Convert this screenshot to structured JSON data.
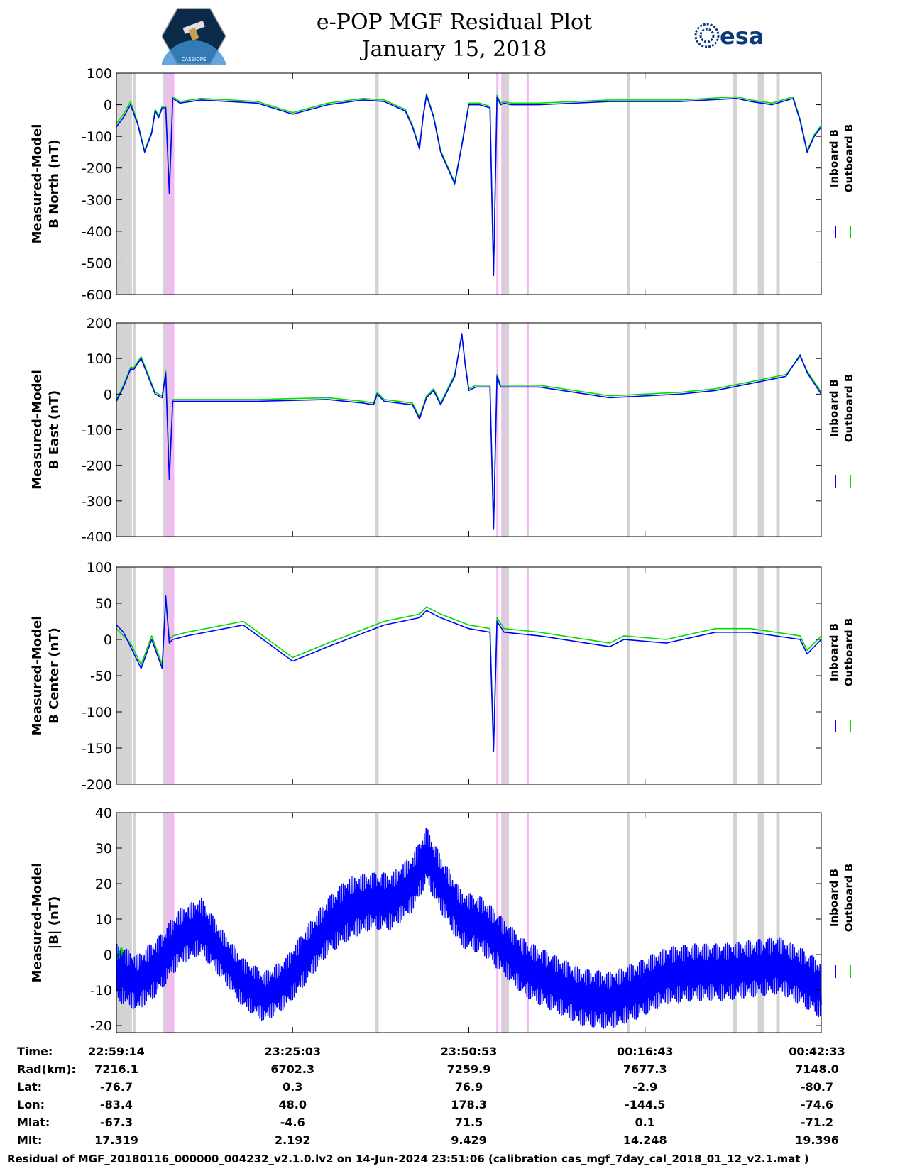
{
  "header": {
    "title_line1": "e-POP MGF Residual Plot",
    "title_line2": "January 15, 2018",
    "logo_left_text": "CASSIOPE",
    "logo_right_text": "esa"
  },
  "colors": {
    "inboard": "#0000ff",
    "outboard": "#00dd00",
    "gray_band": "#d3d3d3",
    "pink_band": "#f4b8f4"
  },
  "chart_data": [
    {
      "type": "line",
      "ylabel": [
        "Measured-Model",
        "B North (nT)"
      ],
      "ylim": [
        -600,
        100
      ],
      "yticks": [
        100,
        0,
        -100,
        -200,
        -300,
        -400,
        -500,
        -600
      ],
      "xlim": [
        0,
        1
      ],
      "grid": false,
      "legend": {
        "placement": "right",
        "entries": [
          "Inboard B",
          "Outboard B"
        ]
      },
      "series": [
        {
          "name": "Inboard B",
          "color": "#0000ff",
          "x": [
            0,
            0.01,
            0.02,
            0.03,
            0.04,
            0.05,
            0.055,
            0.06,
            0.065,
            0.07,
            0.075,
            0.08,
            0.09,
            0.12,
            0.2,
            0.25,
            0.3,
            0.35,
            0.38,
            0.4,
            0.41,
            0.42,
            0.43,
            0.435,
            0.44,
            0.45,
            0.46,
            0.48,
            0.49,
            0.5,
            0.515,
            0.53,
            0.535,
            0.54,
            0.545,
            0.55,
            0.56,
            0.6,
            0.7,
            0.8,
            0.88,
            0.9,
            0.93,
            0.96,
            0.97,
            0.98,
            0.99,
            1
          ],
          "y": [
            -70,
            -40,
            0,
            -60,
            -150,
            -90,
            -20,
            -40,
            -10,
            -10,
            -280,
            20,
            5,
            15,
            5,
            -30,
            0,
            15,
            10,
            -10,
            -20,
            -70,
            -140,
            -40,
            30,
            -40,
            -150,
            -250,
            -130,
            0,
            0,
            -10,
            -540,
            25,
            0,
            5,
            0,
            0,
            10,
            10,
            20,
            10,
            0,
            20,
            -50,
            -150,
            -100,
            -70
          ]
        },
        {
          "name": "Outboard B",
          "color": "#00dd00",
          "x": [
            0,
            0.01,
            0.02,
            0.03,
            0.04,
            0.05,
            0.055,
            0.06,
            0.065,
            0.07,
            0.075,
            0.08,
            0.09,
            0.12,
            0.2,
            0.25,
            0.3,
            0.35,
            0.38,
            0.4,
            0.41,
            0.42,
            0.43,
            0.435,
            0.44,
            0.45,
            0.46,
            0.48,
            0.49,
            0.5,
            0.515,
            0.53,
            0.535,
            0.54,
            0.545,
            0.55,
            0.56,
            0.6,
            0.7,
            0.8,
            0.88,
            0.9,
            0.93,
            0.96,
            0.97,
            0.98,
            0.99,
            1
          ],
          "y": [
            -60,
            -30,
            10,
            -55,
            -145,
            -85,
            -15,
            -35,
            -5,
            -5,
            -275,
            25,
            10,
            20,
            10,
            -25,
            5,
            20,
            15,
            -5,
            -15,
            -65,
            -135,
            -35,
            35,
            -35,
            -145,
            -245,
            -125,
            5,
            5,
            -5,
            -535,
            30,
            5,
            10,
            5,
            5,
            15,
            15,
            25,
            15,
            5,
            25,
            -45,
            -145,
            -95,
            -65
          ]
        }
      ]
    },
    {
      "type": "line",
      "ylabel": [
        "Measured-Model",
        "B East (nT)"
      ],
      "ylim": [
        -400,
        200
      ],
      "yticks": [
        200,
        100,
        0,
        -100,
        -200,
        -300,
        -400
      ],
      "xlim": [
        0,
        1
      ],
      "grid": false,
      "legend": {
        "placement": "right",
        "entries": [
          "Inboard B",
          "Outboard B"
        ]
      },
      "series": [
        {
          "name": "Inboard B",
          "color": "#0000ff",
          "x": [
            0,
            0.01,
            0.02,
            0.025,
            0.035,
            0.045,
            0.055,
            0.065,
            0.07,
            0.075,
            0.08,
            0.1,
            0.2,
            0.3,
            0.35,
            0.365,
            0.37,
            0.38,
            0.42,
            0.43,
            0.44,
            0.45,
            0.46,
            0.48,
            0.49,
            0.495,
            0.5,
            0.51,
            0.53,
            0.535,
            0.54,
            0.545,
            0.55,
            0.6,
            0.7,
            0.8,
            0.85,
            0.9,
            0.95,
            0.97,
            0.98,
            0.99,
            1
          ],
          "y": [
            -20,
            20,
            70,
            70,
            100,
            50,
            0,
            -10,
            60,
            -240,
            -20,
            -20,
            -20,
            -15,
            -25,
            -30,
            0,
            -20,
            -30,
            -70,
            -10,
            10,
            -30,
            50,
            170,
            80,
            10,
            20,
            20,
            -380,
            50,
            20,
            20,
            20,
            -10,
            0,
            10,
            30,
            50,
            110,
            60,
            30,
            0
          ]
        },
        {
          "name": "Outboard B",
          "color": "#00dd00",
          "x": [
            0,
            0.01,
            0.02,
            0.025,
            0.035,
            0.045,
            0.055,
            0.065,
            0.07,
            0.075,
            0.08,
            0.1,
            0.2,
            0.3,
            0.35,
            0.365,
            0.37,
            0.38,
            0.42,
            0.43,
            0.44,
            0.45,
            0.46,
            0.48,
            0.49,
            0.495,
            0.5,
            0.51,
            0.53,
            0.535,
            0.54,
            0.545,
            0.55,
            0.6,
            0.7,
            0.8,
            0.85,
            0.9,
            0.95,
            0.97,
            0.98,
            0.99,
            1
          ],
          "y": [
            -15,
            25,
            75,
            75,
            105,
            55,
            5,
            -5,
            65,
            -235,
            -15,
            -15,
            -15,
            -10,
            -20,
            -25,
            5,
            -15,
            -25,
            -65,
            -5,
            15,
            -25,
            55,
            165,
            85,
            15,
            25,
            25,
            -375,
            55,
            25,
            25,
            25,
            -5,
            5,
            15,
            35,
            55,
            105,
            65,
            35,
            5
          ]
        }
      ]
    },
    {
      "type": "line",
      "ylabel": [
        "Measured-Model",
        "B Center (nT)"
      ],
      "ylim": [
        -200,
        100
      ],
      "yticks": [
        100,
        50,
        0,
        -50,
        -100,
        -150,
        -200
      ],
      "xlim": [
        0,
        1
      ],
      "grid": false,
      "legend": {
        "placement": "right",
        "entries": [
          "Inboard B",
          "Outboard B"
        ]
      },
      "series": [
        {
          "name": "Inboard B",
          "color": "#0000ff",
          "x": [
            0,
            0.01,
            0.02,
            0.035,
            0.05,
            0.065,
            0.07,
            0.075,
            0.08,
            0.1,
            0.18,
            0.25,
            0.3,
            0.38,
            0.43,
            0.44,
            0.46,
            0.5,
            0.53,
            0.535,
            0.54,
            0.55,
            0.6,
            0.7,
            0.72,
            0.78,
            0.85,
            0.9,
            0.97,
            0.98,
            1
          ],
          "y": [
            20,
            10,
            -10,
            -40,
            0,
            -40,
            60,
            -5,
            0,
            5,
            20,
            -30,
            -10,
            20,
            30,
            40,
            30,
            15,
            10,
            -155,
            25,
            10,
            5,
            -10,
            0,
            -5,
            10,
            10,
            0,
            -20,
            0
          ]
        },
        {
          "name": "Outboard B",
          "color": "#00dd00",
          "x": [
            0,
            0.01,
            0.02,
            0.035,
            0.05,
            0.065,
            0.07,
            0.075,
            0.08,
            0.1,
            0.18,
            0.25,
            0.3,
            0.38,
            0.43,
            0.44,
            0.46,
            0.5,
            0.53,
            0.535,
            0.54,
            0.55,
            0.6,
            0.7,
            0.72,
            0.78,
            0.85,
            0.9,
            0.97,
            0.98,
            1
          ],
          "y": [
            15,
            5,
            -5,
            -35,
            5,
            -35,
            55,
            0,
            5,
            10,
            25,
            -25,
            -5,
            25,
            35,
            45,
            35,
            20,
            15,
            -150,
            30,
            15,
            10,
            -5,
            5,
            0,
            15,
            15,
            5,
            -15,
            5
          ]
        }
      ]
    },
    {
      "type": "line",
      "ylabel": [
        "Measured-Model",
        "|B| (nT)"
      ],
      "ylim": [
        -22,
        40
      ],
      "yticks": [
        40,
        30,
        20,
        10,
        0,
        -10,
        -20
      ],
      "yticks_labels": [
        "40",
        "30",
        "20",
        "10",
        "0",
        "-10",
        "-20"
      ],
      "xlim": [
        0,
        1
      ],
      "grid": false,
      "legend": {
        "placement": "right",
        "entries": [
          "Inboard B",
          "Outboard B"
        ]
      },
      "series": [
        {
          "name": "Inboard B",
          "color": "#0000ff",
          "x": [
            0,
            0.03,
            0.06,
            0.09,
            0.12,
            0.15,
            0.18,
            0.21,
            0.24,
            0.27,
            0.3,
            0.33,
            0.36,
            0.39,
            0.42,
            0.44,
            0.46,
            0.49,
            0.52,
            0.55,
            0.58,
            0.62,
            0.66,
            0.7,
            0.74,
            0.78,
            0.82,
            0.86,
            0.9,
            0.94,
            0.97,
            1
          ],
          "y": [
            -5,
            -8,
            -3,
            5,
            8,
            0,
            -8,
            -12,
            -8,
            0,
            8,
            13,
            15,
            15,
            20,
            28,
            20,
            10,
            8,
            2,
            -4,
            -8,
            -12,
            -13,
            -10,
            -6,
            -5,
            -5,
            -4,
            -3,
            -6,
            -10
          ],
          "amplitude": [
            8,
            8,
            8,
            8,
            8,
            7,
            7,
            7,
            7,
            8,
            8,
            9,
            8,
            8,
            8,
            8,
            8,
            8,
            8,
            8,
            8,
            8,
            8,
            8,
            8,
            8,
            8,
            8,
            8,
            8,
            8,
            8
          ]
        },
        {
          "name": "Outboard B",
          "color": "#00dd00",
          "x": [
            0,
            0.01
          ],
          "y": [
            -5,
            -2
          ],
          "amplitude": [
            5,
            5
          ]
        }
      ]
    }
  ],
  "bands": {
    "gray": [
      0.0,
      0.011,
      0.017,
      0.023,
      0.066,
      0.073,
      0.367,
      0.546,
      0.552,
      0.724,
      0.875,
      0.91,
      0.914,
      0.936
    ],
    "pink": [
      0.07,
      0.075,
      0.539,
      0.549,
      0.582
    ]
  },
  "x_axis_table": {
    "row_labels": [
      "Time:",
      "Rad(km):",
      "Lat:",
      "Lon:",
      "Mlat:",
      "Mlt:"
    ],
    "columns": [
      [
        "22:59:14",
        "7216.1",
        "-76.7",
        "-83.4",
        "-67.3",
        "17.319"
      ],
      [
        "23:25:03",
        "6702.3",
        "0.3",
        "48.0",
        "-4.6",
        "2.192"
      ],
      [
        "23:50:53",
        "7259.9",
        "76.9",
        "178.3",
        "71.5",
        "9.429"
      ],
      [
        "00:16:43",
        "7677.3",
        "-2.9",
        "-144.5",
        "0.1",
        "14.248"
      ],
      [
        "00:42:33",
        "7148.0",
        "-80.7",
        "-74.6",
        "-71.2",
        "19.396"
      ]
    ]
  },
  "footer": "Residual of MGF_20180116_000000_004232_v2.1.0.lv2 on 14-Jun-2024 23:51:06 (calibration cas_mgf_7day_cal_2018_01_12_v2.1.mat )"
}
